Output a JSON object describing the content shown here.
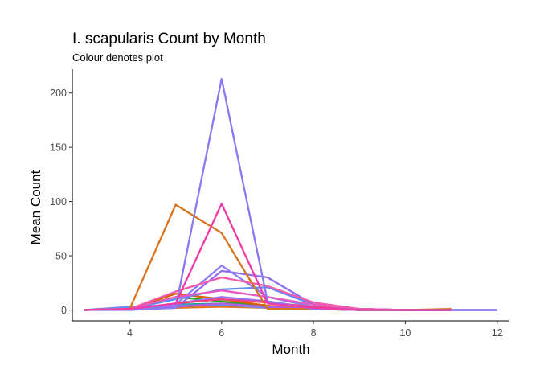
{
  "chart_data": {
    "type": "line",
    "title": "I. scapularis Count by Month",
    "subtitle": "Colour denotes plot",
    "xlabel": "Month",
    "ylabel": "Mean Count",
    "xlim": [
      2.75,
      12.25
    ],
    "ylim": [
      -10,
      222
    ],
    "x_ticks": [
      4,
      6,
      8,
      10,
      12
    ],
    "y_ticks": [
      0,
      50,
      100,
      150,
      200
    ],
    "grid": false,
    "legend": "none",
    "series": [
      {
        "color": "#33a02c",
        "x": [
          3,
          4,
          5,
          6,
          7,
          8,
          9,
          10,
          11
        ],
        "y": [
          0,
          1,
          12,
          8,
          3,
          1,
          0.5,
          0,
          0
        ]
      },
      {
        "color": "#1f9e89",
        "x": [
          3,
          4,
          5,
          6,
          7,
          8,
          9,
          10,
          11
        ],
        "y": [
          0,
          2,
          5,
          6,
          2,
          1,
          0,
          0,
          0
        ]
      },
      {
        "color": "#00a9cc",
        "x": [
          3,
          4,
          5,
          6,
          7,
          8,
          9,
          10,
          11
        ],
        "y": [
          0,
          1,
          3,
          4,
          3,
          1,
          0,
          0,
          0
        ]
      },
      {
        "color": "#d95f02",
        "x": [
          3,
          4,
          5,
          6,
          7,
          8,
          9,
          10,
          11
        ],
        "y": [
          0,
          1,
          15,
          10,
          4,
          1,
          0,
          0,
          0
        ]
      },
      {
        "color": "#e0752a",
        "x": [
          3,
          4,
          5,
          6,
          7,
          8,
          9,
          10,
          11
        ],
        "y": [
          0,
          1,
          2,
          3,
          2,
          1,
          0,
          0,
          0
        ]
      },
      {
        "color": "#5b8ff9",
        "x": [
          3,
          4,
          5,
          6,
          7,
          8,
          9,
          10,
          11
        ],
        "y": [
          0,
          1,
          10,
          19,
          21,
          5,
          1,
          0,
          0
        ]
      },
      {
        "color": "#6f8ef2",
        "x": [
          3,
          4,
          5,
          6,
          7,
          8,
          9,
          10,
          11
        ],
        "y": [
          0,
          3,
          4,
          5,
          2,
          1,
          0,
          0,
          0
        ]
      },
      {
        "color": "#9b6df5",
        "x": [
          3,
          4,
          5,
          6,
          7,
          8,
          9,
          10,
          11,
          12
        ],
        "y": [
          0,
          1,
          6,
          12,
          8,
          2,
          1,
          0,
          0,
          0
        ]
      },
      {
        "color": "#b05ce6",
        "x": [
          3,
          4,
          5,
          6,
          7,
          8,
          9,
          10,
          11,
          12
        ],
        "y": [
          0,
          1,
          3,
          6,
          3,
          1,
          0,
          0,
          0,
          0
        ]
      },
      {
        "color": "#8f6ef0",
        "x": [
          3,
          4,
          5,
          6,
          7,
          8,
          9,
          10,
          11,
          12
        ],
        "y": [
          0,
          1,
          2,
          36,
          30,
          5,
          1,
          0,
          0,
          0
        ]
      },
      {
        "color": "#8b7ff6",
        "x": [
          3,
          4,
          5,
          6,
          7,
          8,
          9,
          10,
          11,
          12
        ],
        "y": [
          0,
          1,
          5,
          41,
          12,
          3,
          1,
          0,
          0,
          0
        ]
      },
      {
        "color": "#f0437d",
        "x": [
          3,
          4,
          5,
          6,
          7,
          8,
          9,
          10,
          11
        ],
        "y": [
          0,
          1,
          6,
          10,
          7,
          3,
          1,
          0,
          0
        ]
      },
      {
        "color": "#e55ac0",
        "x": [
          3,
          4,
          5,
          6,
          7,
          8,
          9,
          10,
          11
        ],
        "y": [
          0,
          1,
          12,
          18,
          12,
          5,
          1,
          0,
          0
        ]
      },
      {
        "color": "#f05aa8",
        "x": [
          3,
          4,
          5,
          6,
          7,
          8,
          9,
          10,
          11
        ],
        "y": [
          0,
          1,
          17,
          30,
          22,
          7,
          1,
          0,
          0
        ]
      },
      {
        "color": "#d9731c",
        "x": [
          3,
          4,
          5,
          6,
          7,
          8,
          9,
          10,
          11
        ],
        "y": [
          0,
          1,
          97,
          71,
          1,
          1,
          0,
          0,
          1
        ]
      },
      {
        "color": "#8a78f3",
        "x": [
          3,
          4,
          5,
          6,
          7,
          8,
          9,
          10,
          11,
          12
        ],
        "y": [
          0,
          0,
          2,
          213,
          8,
          1,
          0,
          0,
          0,
          0
        ]
      },
      {
        "color": "#f03aa8",
        "x": [
          3,
          4,
          5,
          6,
          7,
          8,
          9,
          10,
          11
        ],
        "y": [
          0,
          1,
          6,
          98,
          6,
          2,
          0,
          0,
          0
        ]
      }
    ]
  }
}
